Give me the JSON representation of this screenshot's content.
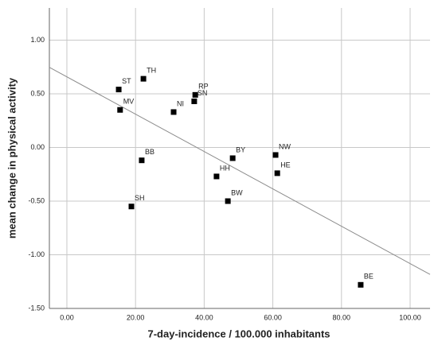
{
  "chart_data": {
    "type": "scatter",
    "x_label": "7-day-incidence / 100.000 inhabitants",
    "y_label": "mean change in physical activity",
    "series": [
      {
        "color": "#000000",
        "point_labels": [
          "TH",
          "ST",
          "MV",
          "RP",
          "SN",
          "NI",
          "BB",
          "SH",
          "BY",
          "NW",
          "HE",
          "HH",
          "BW",
          "BE"
        ],
        "x": [
          22.3,
          15.1,
          15.5,
          37.4,
          37.1,
          31.1,
          21.8,
          18.8,
          48.3,
          60.8,
          61.3,
          43.6,
          46.9,
          85.6
        ],
        "values": [
          0.64,
          0.54,
          0.35,
          0.49,
          0.43,
          0.33,
          -0.12,
          -0.55,
          -0.1,
          -0.07,
          -0.24,
          -0.27,
          -0.5,
          -1.28
        ]
      }
    ],
    "trend_line": {
      "color": "#8c8c8c",
      "x": [
        -5.1,
        105.8
      ],
      "y": [
        0.747,
        -1.183
      ]
    },
    "xlim": [
      -5.1,
      105.8
    ],
    "ylim": [
      -1.5,
      1.3
    ],
    "xticks": [
      {
        "value": 0,
        "label": "0.00"
      },
      {
        "value": 20,
        "label": "20.00"
      },
      {
        "value": 40,
        "label": "40.00"
      },
      {
        "value": 60,
        "label": "60.00"
      },
      {
        "value": 80,
        "label": "80.00"
      },
      {
        "value": 100,
        "label": "100.00"
      }
    ],
    "yticks": [
      {
        "value": 1,
        "label": "1.00"
      },
      {
        "value": 0.5,
        "label": "0.50"
      },
      {
        "value": 0,
        "label": "0.00"
      },
      {
        "value": -0.5,
        "label": "-0.50"
      },
      {
        "value": -1,
        "label": "-1.00"
      },
      {
        "value": -1.5,
        "label": "-1.50"
      }
    ],
    "grid": true
  }
}
